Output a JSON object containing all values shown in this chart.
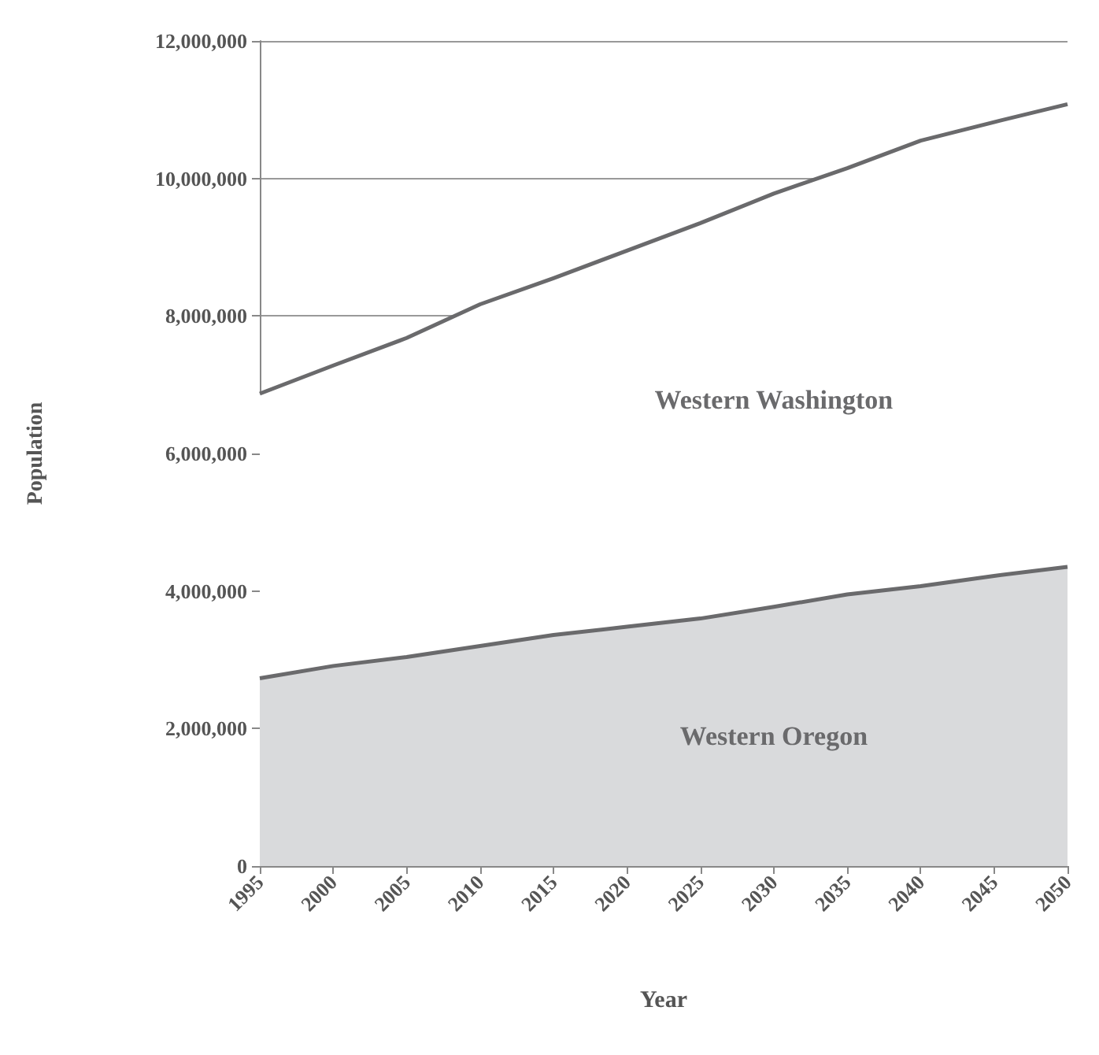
{
  "chart_data": {
    "type": "area",
    "stacked": true,
    "xlabel": "Year",
    "ylabel": "Population",
    "x": [
      1995,
      2000,
      2005,
      2010,
      2015,
      2020,
      2025,
      2030,
      2035,
      2040,
      2045,
      2050
    ],
    "series": [
      {
        "name": "Western Oregon",
        "color": "#d9dadc",
        "values": [
          2730000,
          2910000,
          3040000,
          3200000,
          3360000,
          3480000,
          3600000,
          3770000,
          3950000,
          4070000,
          4220000,
          4350000
        ]
      },
      {
        "name": "Western Washington",
        "color": "#6a6a6c",
        "values": [
          4140000,
          4370000,
          4640000,
          4970000,
          5190000,
          5470000,
          5750000,
          6010000,
          6200000,
          6480000,
          6600000,
          6730000
        ]
      }
    ],
    "xlim": [
      1995,
      2050
    ],
    "xticks": [
      1995,
      2000,
      2005,
      2010,
      2015,
      2020,
      2025,
      2030,
      2035,
      2040,
      2045,
      2050
    ],
    "ylim": [
      0,
      12000000
    ],
    "yticks": [
      0,
      {
        "value": 2000000,
        "label": "2,000,000"
      },
      {
        "value": 4000000,
        "label": "4,000,000"
      },
      {
        "value": 6000000,
        "label": "6,000,000"
      },
      {
        "value": 8000000,
        "label": "8,000,000"
      },
      {
        "value": 10000000,
        "label": "10,000,000"
      },
      {
        "value": 12000000,
        "label": "12,000,000"
      }
    ],
    "grid": "y",
    "legend": false
  }
}
